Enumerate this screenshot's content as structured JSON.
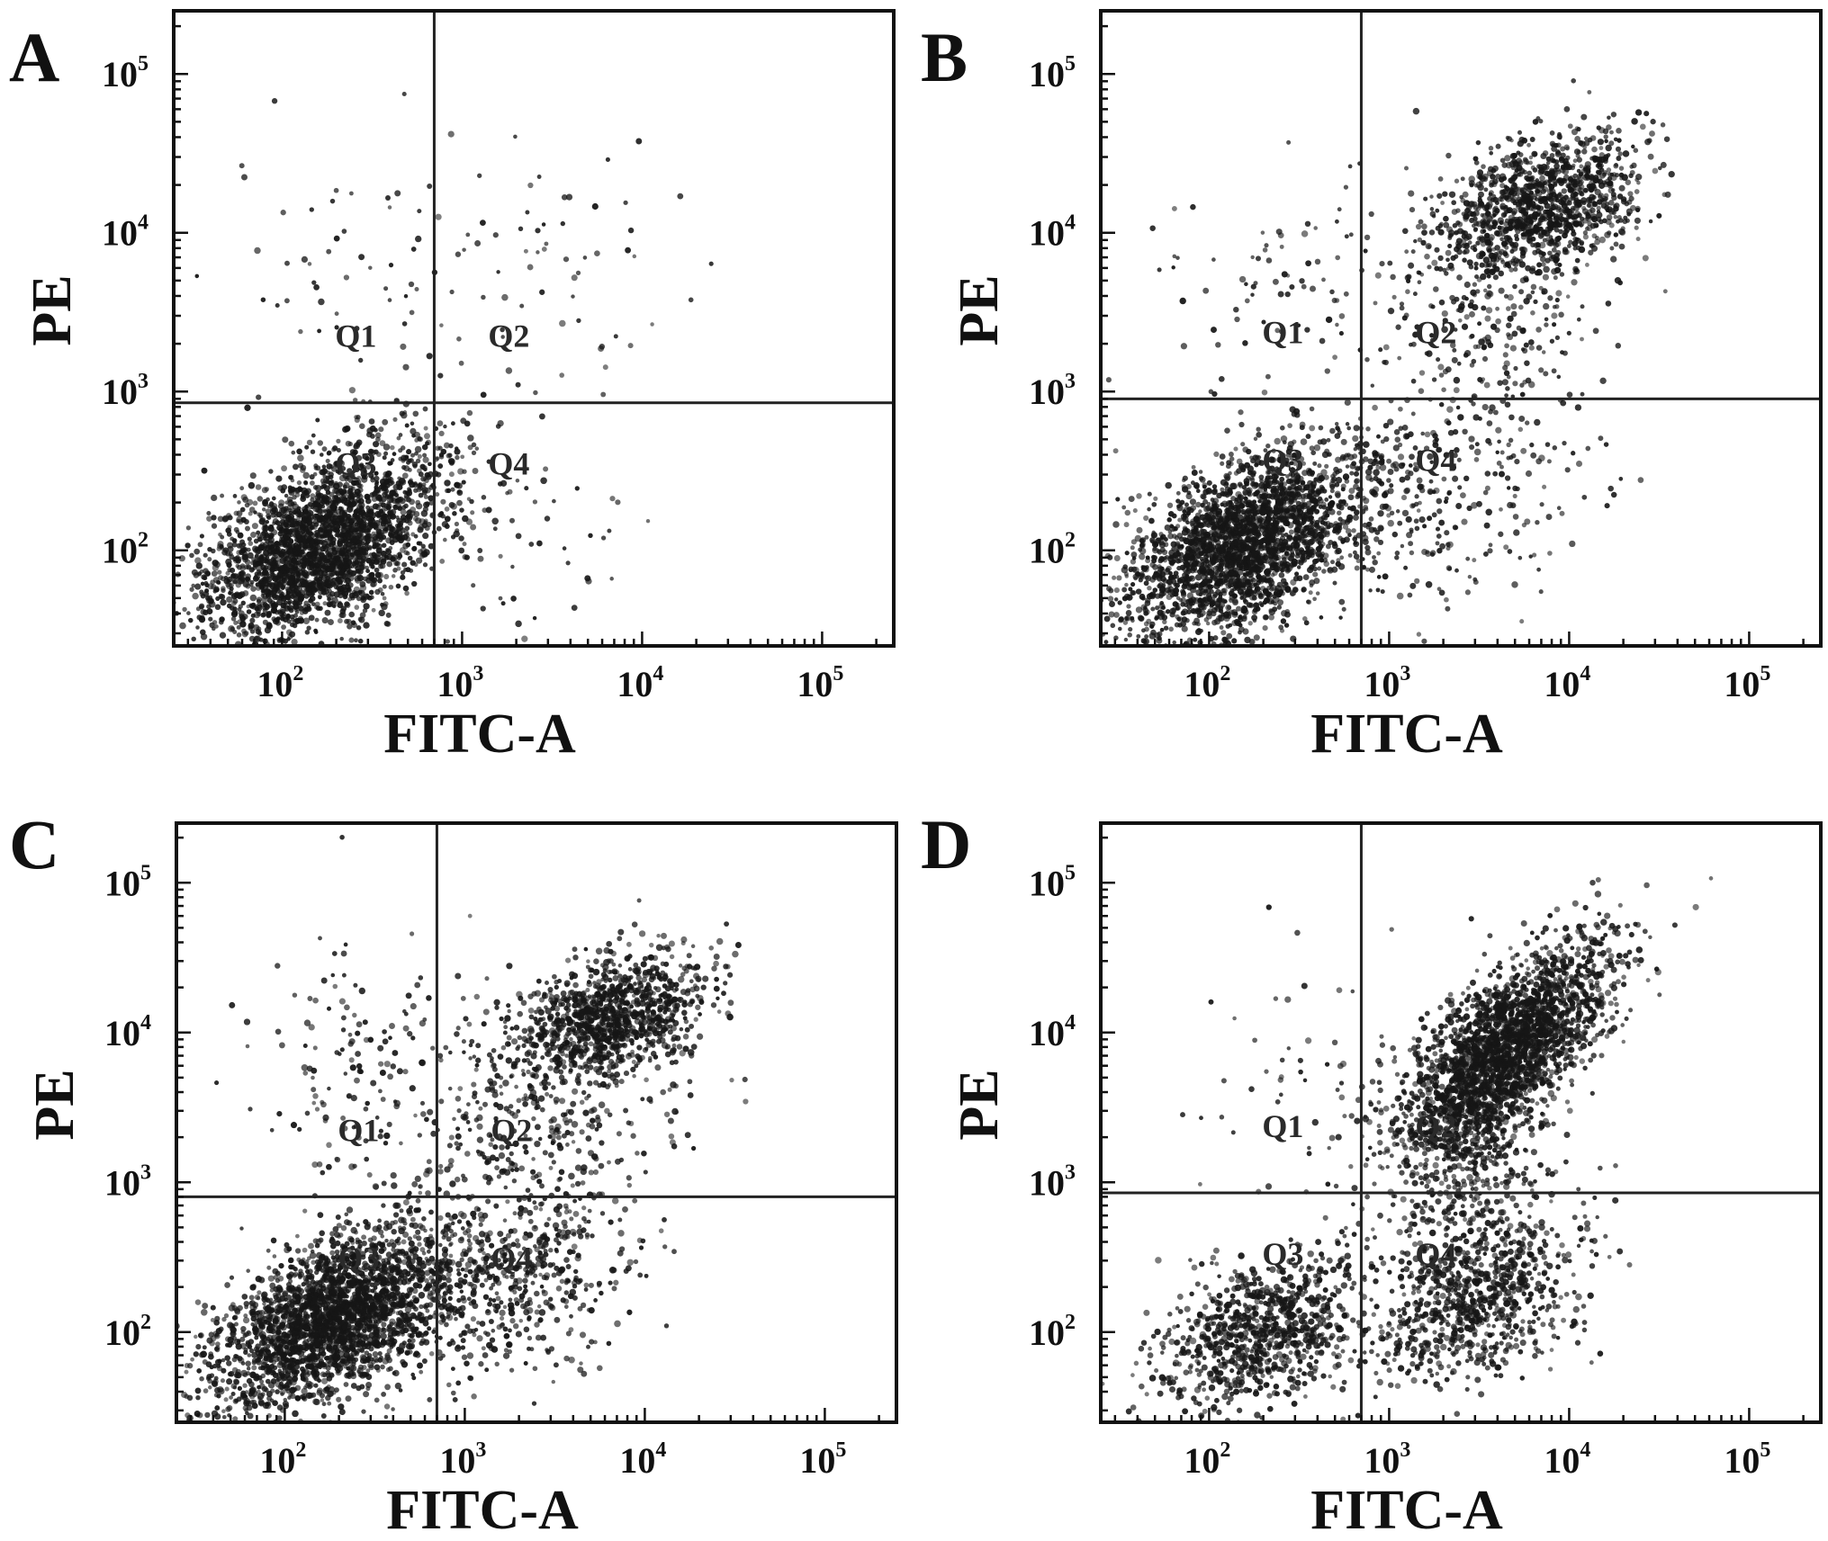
{
  "figure": {
    "panels": [
      "A",
      "B",
      "C",
      "D"
    ]
  },
  "chart_data": [
    {
      "type": "scatter",
      "panel": "A",
      "xlabel": "FITC-A",
      "ylabel": "PE",
      "xscale": "log",
      "yscale": "log",
      "x_tick_labels": [
        "10^2",
        "10^3",
        "10^4",
        "10^5"
      ],
      "y_tick_labels": [
        "10^2",
        "10^3",
        "10^4",
        "10^5"
      ],
      "xlim": [
        25,
        250000
      ],
      "ylim": [
        25,
        250000
      ],
      "gate": {
        "x": 700,
        "y": 850
      },
      "quadrants": [
        "Q1",
        "Q2",
        "Q3",
        "Q4"
      ],
      "populations": [
        {
          "quadrant": "Q3",
          "center": [
            170,
            110
          ],
          "spread": [
            0.33,
            0.3
          ],
          "rho": 0.5,
          "count": 2600
        },
        {
          "quadrant": "Q4",
          "center": [
            1800,
            150
          ],
          "spread": [
            0.35,
            0.4
          ],
          "rho": 0.0,
          "count": 60
        },
        {
          "quadrant": "Q2",
          "center": [
            2500,
            6000
          ],
          "spread": [
            0.4,
            0.45
          ],
          "rho": 0.0,
          "count": 60
        },
        {
          "quadrant": "Q1",
          "center": [
            250,
            5000
          ],
          "spread": [
            0.35,
            0.45
          ],
          "rho": 0.0,
          "count": 60
        }
      ]
    },
    {
      "type": "scatter",
      "panel": "B",
      "xlabel": "FITC-A",
      "ylabel": "PE",
      "xscale": "log",
      "yscale": "log",
      "x_tick_labels": [
        "10^2",
        "10^3",
        "10^4",
        "10^5"
      ],
      "y_tick_labels": [
        "10^2",
        "10^3",
        "10^4",
        "10^5"
      ],
      "xlim": [
        25,
        250000
      ],
      "ylim": [
        25,
        250000
      ],
      "gate": {
        "x": 700,
        "y": 900
      },
      "quadrants": [
        "Q1",
        "Q2",
        "Q3",
        "Q4"
      ],
      "populations": [
        {
          "quadrant": "Q3",
          "center": [
            160,
            110
          ],
          "spread": [
            0.33,
            0.3
          ],
          "rho": 0.5,
          "count": 2500
        },
        {
          "quadrant": "Q2",
          "center": [
            7000,
            15000
          ],
          "spread": [
            0.28,
            0.22
          ],
          "rho": 0.4,
          "count": 1100
        },
        {
          "quadrant": "Q2",
          "center": [
            3500,
            3000
          ],
          "spread": [
            0.35,
            0.4
          ],
          "rho": 0.3,
          "count": 300
        },
        {
          "quadrant": "Q4",
          "center": [
            2000,
            200
          ],
          "spread": [
            0.4,
            0.4
          ],
          "rho": 0.2,
          "count": 300
        },
        {
          "quadrant": "Q1",
          "center": [
            250,
            4000
          ],
          "spread": [
            0.35,
            0.45
          ],
          "rho": 0.0,
          "count": 80
        }
      ]
    },
    {
      "type": "scatter",
      "panel": "C",
      "xlabel": "FITC-A",
      "ylabel": "PE",
      "xscale": "log",
      "yscale": "log",
      "x_tick_labels": [
        "10^2",
        "10^3",
        "10^4",
        "10^5"
      ],
      "y_tick_labels": [
        "10^2",
        "10^3",
        "10^4",
        "10^5"
      ],
      "xlim": [
        25,
        250000
      ],
      "ylim": [
        25,
        250000
      ],
      "gate": {
        "x": 700,
        "y": 800
      },
      "quadrants": [
        "Q1",
        "Q2",
        "Q3",
        "Q4"
      ],
      "populations": [
        {
          "quadrant": "Q3",
          "center": [
            180,
            120
          ],
          "spread": [
            0.33,
            0.3
          ],
          "rho": 0.5,
          "count": 2500
        },
        {
          "quadrant": "Q2",
          "center": [
            6500,
            13000
          ],
          "spread": [
            0.26,
            0.2
          ],
          "rho": 0.4,
          "count": 1000
        },
        {
          "quadrant": "Q2",
          "center": [
            3000,
            3500
          ],
          "spread": [
            0.4,
            0.4
          ],
          "rho": 0.2,
          "count": 400
        },
        {
          "quadrant": "Q4",
          "center": [
            1800,
            250
          ],
          "spread": [
            0.35,
            0.35
          ],
          "rho": 0.3,
          "count": 600
        },
        {
          "quadrant": "Q1",
          "center": [
            300,
            6000
          ],
          "spread": [
            0.35,
            0.45
          ],
          "rho": 0.0,
          "count": 150
        }
      ]
    },
    {
      "type": "scatter",
      "panel": "D",
      "xlabel": "FITC-A",
      "ylabel": "PE",
      "xscale": "log",
      "yscale": "log",
      "x_tick_labels": [
        "10^2",
        "10^3",
        "10^4",
        "10^5"
      ],
      "y_tick_labels": [
        "10^2",
        "10^3",
        "10^4",
        "10^5"
      ],
      "xlim": [
        25,
        250000
      ],
      "ylim": [
        25,
        250000
      ],
      "gate": {
        "x": 700,
        "y": 850
      },
      "quadrants": [
        "Q1",
        "Q2",
        "Q3",
        "Q4"
      ],
      "populations": [
        {
          "quadrant": "Q3",
          "center": [
            200,
            100
          ],
          "spread": [
            0.28,
            0.25
          ],
          "rho": 0.4,
          "count": 900
        },
        {
          "quadrant": "Q2",
          "center": [
            4500,
            8000
          ],
          "spread": [
            0.3,
            0.35
          ],
          "rho": 0.7,
          "count": 2200
        },
        {
          "quadrant": "Q2",
          "center": [
            3000,
            2000
          ],
          "spread": [
            0.22,
            0.35
          ],
          "rho": 0.3,
          "count": 500
        },
        {
          "quadrant": "Q4",
          "center": [
            3000,
            180
          ],
          "spread": [
            0.3,
            0.3
          ],
          "rho": 0.3,
          "count": 900
        },
        {
          "quadrant": "Q1",
          "center": [
            350,
            5000
          ],
          "spread": [
            0.35,
            0.45
          ],
          "rho": 0.0,
          "count": 60
        }
      ]
    }
  ]
}
